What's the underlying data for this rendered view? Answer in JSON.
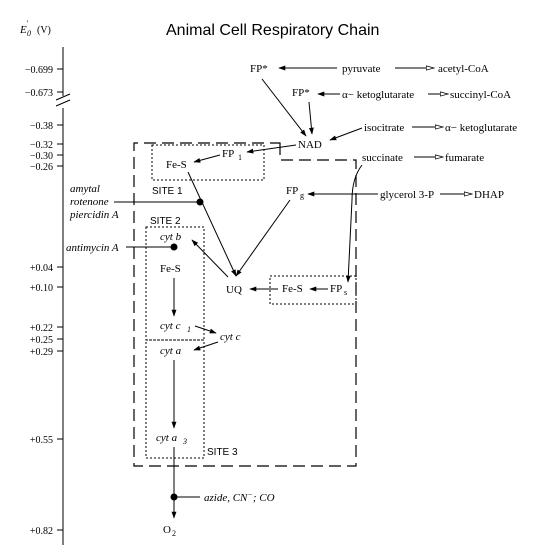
{
  "title": "Animal Cell Respiratory Chain",
  "axis": {
    "label_main": "E",
    "label_sub": "0",
    "label_sup": "'",
    "label_unit": "(V)",
    "ticks": [
      "−0.699",
      "−0.673",
      "−0.38",
      "−0.32",
      "−0.30",
      "−0.26",
      "+0.04",
      "+0.10",
      "+0.22",
      "+0.25",
      "+0.29",
      "+0.55",
      "+0.82"
    ]
  },
  "nodes": {
    "fp_star_1": "FP*",
    "pyruvate": "pyruvate",
    "acetyl_coa": "acetyl-CoA",
    "fp_star_2": "FP*",
    "alpha_kg": "α− ketoglutarate",
    "succinyl_coa": "succinyl-CoA",
    "isocitrate": "isocitrate",
    "alpha_kg_2": "α− ketoglutarate",
    "nad": "NAD",
    "succinate": "succinate",
    "fumarate": "fumarate",
    "fp1_main": "FP",
    "fp1_sub": "1",
    "fes_1": "Fe-S",
    "fpg_main": "FP",
    "fpg_sub": "g",
    "glycerol": "glycerol 3-P",
    "dhap": "DHAP",
    "uq": "UQ",
    "fes_2": "Fe-S",
    "fps_main": "FP",
    "fps_sub": "s",
    "cyt_b": "cyt b",
    "fes_3": "Fe-S",
    "cyt_c1_main": "cyt c",
    "cyt_c1_sub": "1",
    "cyt_c": "cyt c",
    "cyt_a": "cyt a",
    "cyt_a3_main": "cyt a",
    "cyt_a3_sub": "3",
    "o2_main": "O",
    "o2_sub": "2"
  },
  "sites": {
    "site1": "SITE 1",
    "site2": "SITE 2",
    "site3": "SITE 3"
  },
  "inhibitors": {
    "amytal": "amytal",
    "rotenone": "rotenone",
    "piercidin": "piercidin A",
    "antimycin": "antimycin A",
    "azide": "azide, CN",
    "azide_sup": "−",
    "azide_end": "; CO"
  }
}
